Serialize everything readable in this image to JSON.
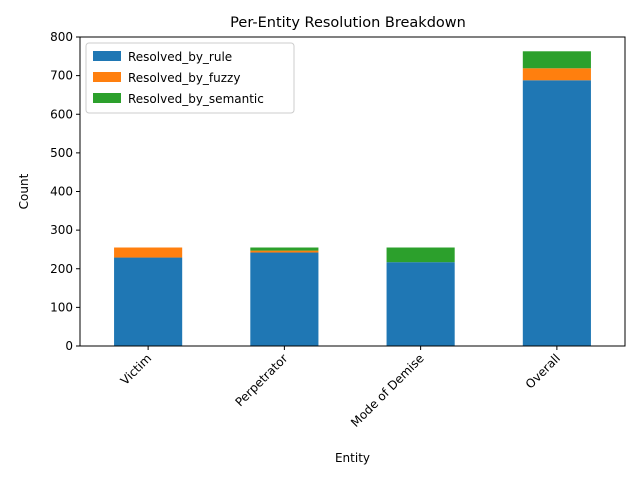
{
  "chart_data": {
    "type": "bar",
    "stacked": true,
    "title": "Per-Entity Resolution Breakdown",
    "xlabel": "Entity",
    "ylabel": "Count",
    "ylim": [
      0,
      800
    ],
    "yticks": [
      0,
      100,
      200,
      300,
      400,
      500,
      600,
      700,
      800
    ],
    "categories": [
      "Victim",
      "Perpetrator",
      "Mode of Demise",
      "Overall"
    ],
    "series": [
      {
        "name": "Resolved_by_rule",
        "color": "#1f77b4",
        "values": [
          229,
          242,
          217,
          688
        ]
      },
      {
        "name": "Resolved_by_fuzzy",
        "color": "#ff7f0e",
        "values": [
          26,
          5,
          0,
          31
        ]
      },
      {
        "name": "Resolved_by_semantic",
        "color": "#2ca02c",
        "values": [
          0,
          8,
          38,
          44
        ]
      }
    ],
    "legend_position": "upper-left",
    "grid": false
  }
}
